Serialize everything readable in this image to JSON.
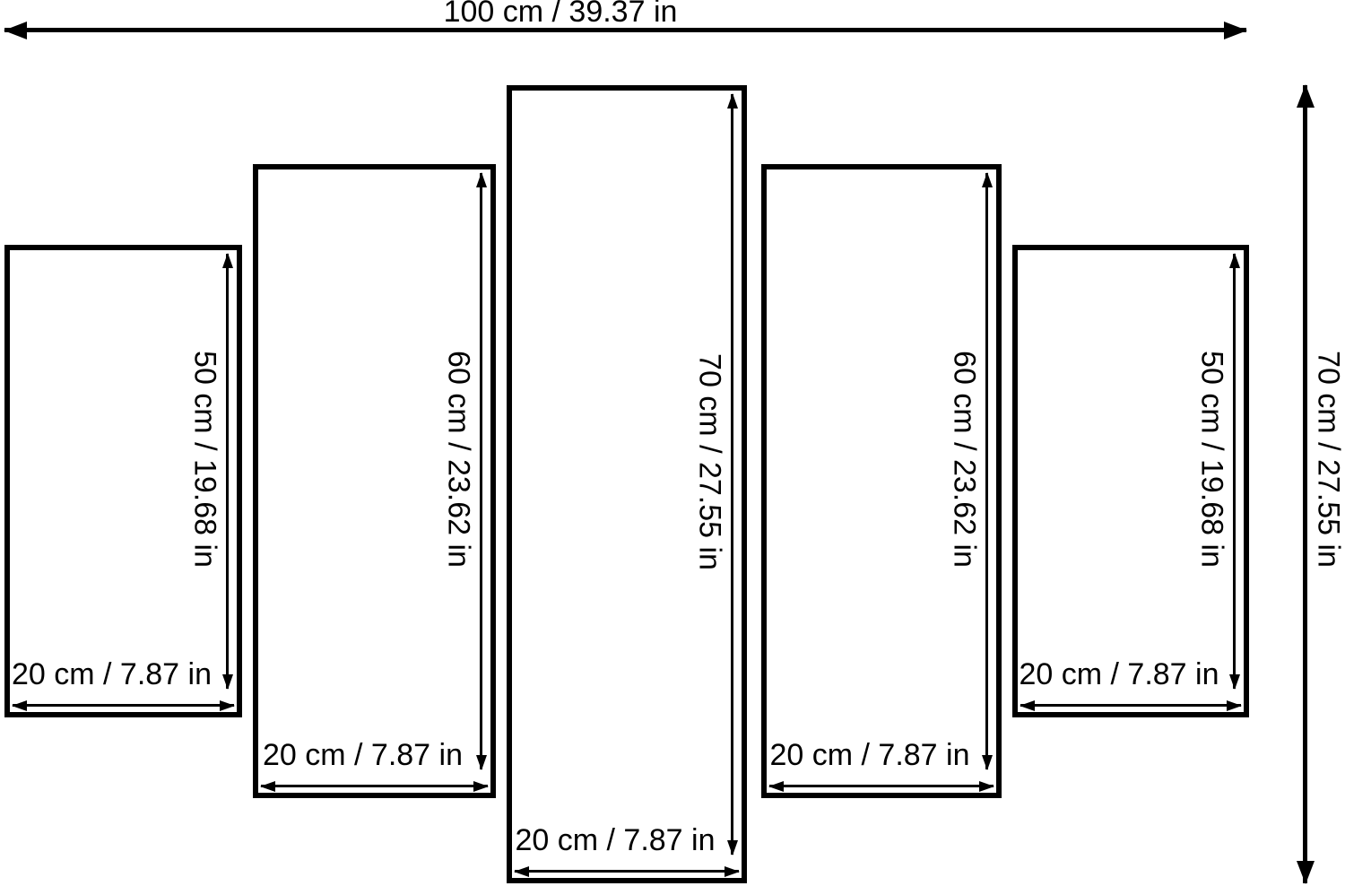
{
  "diagram": {
    "description": "5-panel wall art size diagram",
    "colors": {
      "line": "#000000",
      "background": "#ffffff"
    },
    "overall_width": {
      "label": "100 cm / 39.37 in",
      "cm": 100,
      "in": 39.37
    },
    "overall_height": {
      "label": "70 cm / 27.55 in",
      "cm": 70,
      "in": 27.55
    },
    "panels": [
      {
        "position": "far-left",
        "height_label": "50 cm / 19.68 in",
        "width_label": "20 cm / 7.87 in",
        "height_cm": 50,
        "height_in": 19.68,
        "width_cm": 20,
        "width_in": 7.87
      },
      {
        "position": "left",
        "height_label": "60 cm / 23.62 in",
        "width_label": "20 cm / 7.87 in",
        "height_cm": 60,
        "height_in": 23.62,
        "width_cm": 20,
        "width_in": 7.87
      },
      {
        "position": "center",
        "height_label": "70 cm / 27.55 in",
        "width_label": "20 cm / 7.87 in",
        "height_cm": 70,
        "height_in": 27.55,
        "width_cm": 20,
        "width_in": 7.87
      },
      {
        "position": "right",
        "height_label": "60 cm / 23.62 in",
        "width_label": "20 cm / 7.87 in",
        "height_cm": 60,
        "height_in": 23.62,
        "width_cm": 20,
        "width_in": 7.87
      },
      {
        "position": "far-right",
        "height_label": "50 cm / 19.68 in",
        "width_label": "20 cm / 7.87 in",
        "height_cm": 50,
        "height_in": 19.68,
        "width_cm": 20,
        "width_in": 7.87
      }
    ]
  }
}
